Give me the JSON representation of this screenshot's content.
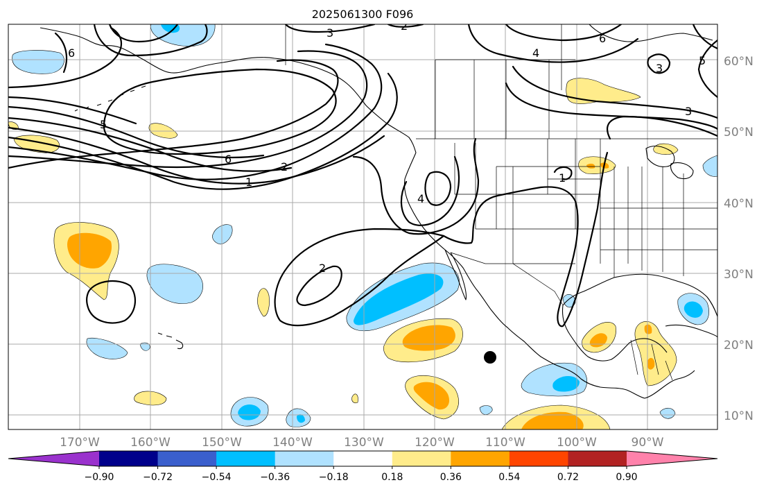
{
  "title": "2025061300 F096",
  "lat_labels": [
    "60°N",
    "50°N",
    "40°N",
    "30°N",
    "20°N",
    "10°N"
  ],
  "lon_labels": [
    "170°W",
    "160°W",
    "150°W",
    "140°W",
    "130°W",
    "120°W",
    "110°W",
    "100°W",
    "90°W"
  ],
  "colorbar": {
    "colors": [
      "#9a32cd",
      "#00008b",
      "#3a5fcd",
      "#00bfff",
      "#b0e2ff",
      "#ffffff",
      "#ffec8b",
      "#ffa500",
      "#ff4500",
      "#b22222",
      "#ff82ab"
    ],
    "tick_labels": [
      "−0.90",
      "−0.72",
      "−0.54",
      "−0.36",
      "−0.18",
      "0.18",
      "0.36",
      "0.54",
      "0.72",
      "0.90"
    ]
  },
  "contour_labels": [
    {
      "id": "c3-top",
      "text": "3"
    },
    {
      "id": "c2-top",
      "text": "2"
    },
    {
      "id": "c6-left",
      "text": "6"
    },
    {
      "id": "c5-left",
      "text": "5"
    },
    {
      "id": "c6-mid",
      "text": "6"
    },
    {
      "id": "c2-mid",
      "text": "2"
    },
    {
      "id": "c1-mid",
      "text": "1"
    },
    {
      "id": "c4-north",
      "text": "4"
    },
    {
      "id": "c6-ne",
      "text": "6"
    },
    {
      "id": "c5-ne",
      "text": "5"
    },
    {
      "id": "c3-ne",
      "text": "3"
    },
    {
      "id": "c3-east",
      "text": "3"
    },
    {
      "id": "c4-coast",
      "text": "4"
    },
    {
      "id": "c2-ocean",
      "text": "2"
    },
    {
      "id": "c1-plains",
      "text": "1"
    }
  ],
  "marker": {
    "label": "storm-center"
  }
}
